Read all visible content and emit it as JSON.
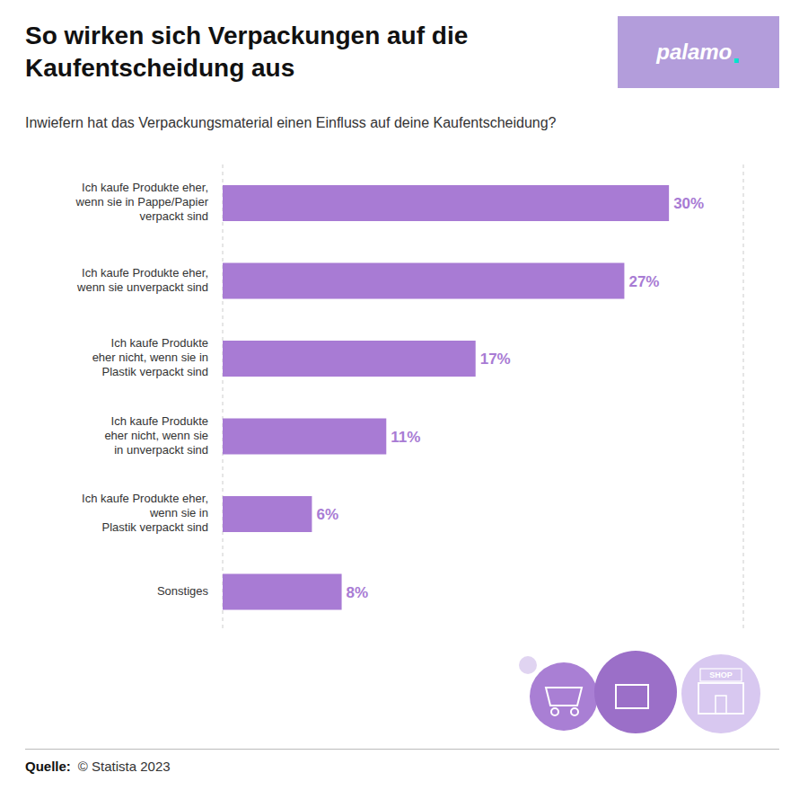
{
  "chart_data": {
    "type": "bar",
    "orientation": "horizontal",
    "title": "So wirken sich Verpackungen auf die\nKaufentscheidung aus",
    "subtitle": "Inwiefern hat das Verpackungsmaterial einen Einfluss auf deine Kaufentscheidung?",
    "categories": [
      "Ich kaufe Produkte eher,\nwenn sie in Pappe/Papier\nverpackt sind",
      "Ich kaufe Produkte eher,\nwenn sie unverpackt sind",
      "Ich kaufe Produkte\neher nicht, wenn sie in\nPlastik verpackt sind",
      "Ich kaufe Produkte\neher nicht, wenn sie\nin unverpackt sind",
      "Ich kaufe Produkte eher,\nwenn sie in\nPlastik verpackt sind",
      "Sonstiges"
    ],
    "values": [
      30,
      27,
      17,
      11,
      6,
      8
    ],
    "value_labels": [
      "30%",
      "27%",
      "17%",
      "11%",
      "6%",
      "8%"
    ],
    "data_labels": true,
    "color": "#a87bd4",
    "xlim": [
      0,
      35
    ],
    "xticks": [
      0,
      5,
      10,
      15,
      20,
      25,
      30,
      35
    ],
    "grid": true,
    "tick_labels": "y",
    "annotations": [
      "palamo",
      ".",
      "SHOP",
      "Quelle:",
      "© Statista 2023"
    ]
  }
}
